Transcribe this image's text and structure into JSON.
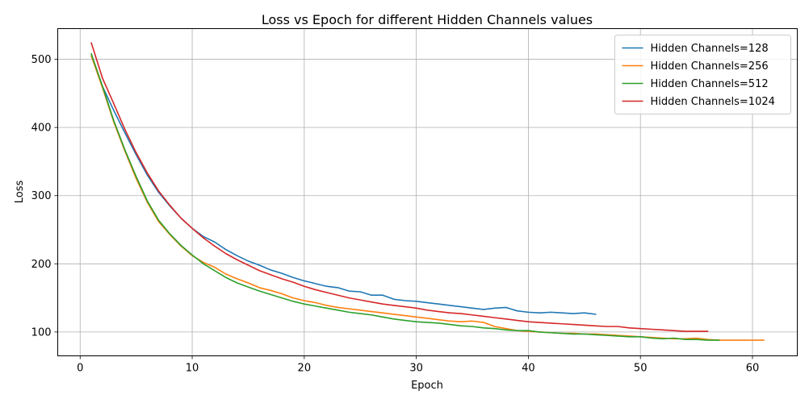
{
  "chart_data": {
    "type": "line",
    "title": "Loss vs Epoch for different Hidden Channels values",
    "xlabel": "Epoch",
    "ylabel": "Loss",
    "xlim": [
      -2.0,
      64.0
    ],
    "ylim": [
      65,
      545
    ],
    "xticks": [
      0,
      10,
      20,
      30,
      40,
      50,
      60
    ],
    "yticks": [
      100,
      200,
      300,
      400,
      500
    ],
    "grid": true,
    "legend_position": "top-right",
    "series": [
      {
        "name": "Hidden Channels=128",
        "color": "#1f77b4",
        "x": [
          1,
          2,
          3,
          4,
          5,
          6,
          7,
          8,
          9,
          10,
          11,
          12,
          13,
          14,
          15,
          16,
          17,
          18,
          19,
          20,
          21,
          22,
          23,
          24,
          25,
          26,
          27,
          28,
          29,
          30,
          31,
          32,
          33,
          34,
          35,
          36,
          37,
          38,
          39,
          40,
          41,
          42,
          43,
          44,
          45,
          46
        ],
        "y": [
          505,
          460,
          425,
          392,
          360,
          330,
          305,
          285,
          267,
          252,
          240,
          232,
          221,
          212,
          204,
          198,
          191,
          186,
          180,
          175,
          171,
          167,
          165,
          160,
          159,
          154,
          154,
          148,
          146,
          145,
          143,
          141,
          139,
          137,
          135,
          133,
          135,
          136,
          131,
          129,
          128,
          129,
          128,
          127,
          128,
          126
        ]
      },
      {
        "name": "Hidden Channels=256",
        "color": "#ff7f0e",
        "x": [
          1,
          2,
          3,
          4,
          5,
          6,
          7,
          8,
          9,
          10,
          11,
          12,
          13,
          14,
          15,
          16,
          17,
          18,
          19,
          20,
          21,
          22,
          23,
          24,
          25,
          26,
          27,
          28,
          29,
          30,
          31,
          32,
          33,
          34,
          35,
          36,
          37,
          38,
          39,
          40,
          41,
          42,
          43,
          44,
          45,
          46,
          47,
          48,
          49,
          50,
          51,
          52,
          53,
          54,
          55,
          56,
          57,
          58,
          59,
          60,
          61
        ],
        "y": [
          505,
          458,
          408,
          365,
          325,
          290,
          262,
          243,
          226,
          212,
          202,
          195,
          185,
          178,
          172,
          165,
          161,
          156,
          150,
          146,
          143,
          139,
          136,
          134,
          132,
          130,
          128,
          126,
          124,
          122,
          120,
          118,
          116,
          115,
          116,
          114,
          108,
          105,
          102,
          101,
          100,
          99,
          98,
          98,
          97,
          97,
          96,
          95,
          94,
          93,
          92,
          91,
          90,
          90,
          91,
          89,
          88,
          88,
          88,
          88,
          88
        ]
      },
      {
        "name": "Hidden Channels=512",
        "color": "#2ca02c",
        "x": [
          1,
          2,
          3,
          4,
          5,
          6,
          7,
          8,
          9,
          10,
          11,
          12,
          13,
          14,
          15,
          16,
          17,
          18,
          19,
          20,
          21,
          22,
          23,
          24,
          25,
          26,
          27,
          28,
          29,
          30,
          31,
          32,
          33,
          34,
          35,
          36,
          37,
          38,
          39,
          40,
          41,
          42,
          43,
          44,
          45,
          46,
          47,
          48,
          49,
          50,
          51,
          52,
          53,
          54,
          55,
          56,
          57
        ],
        "y": [
          508,
          460,
          410,
          367,
          328,
          292,
          264,
          244,
          227,
          213,
          200,
          190,
          180,
          172,
          166,
          160,
          155,
          150,
          145,
          141,
          138,
          135,
          132,
          129,
          127,
          125,
          122,
          119,
          117,
          115,
          114,
          113,
          111,
          109,
          108,
          106,
          105,
          103,
          102,
          102,
          100,
          99,
          98,
          97,
          97,
          96,
          95,
          94,
          93,
          93,
          91,
          90,
          91,
          89,
          89,
          88,
          88
        ]
      },
      {
        "name": "Hidden Channels=1024",
        "color": "#d62728",
        "x": [
          1,
          2,
          3,
          4,
          5,
          6,
          7,
          8,
          9,
          10,
          11,
          12,
          13,
          14,
          15,
          16,
          17,
          18,
          19,
          20,
          21,
          22,
          23,
          24,
          25,
          26,
          27,
          28,
          29,
          30,
          31,
          32,
          33,
          34,
          35,
          36,
          37,
          38,
          39,
          40,
          41,
          42,
          43,
          44,
          45,
          46,
          47,
          48,
          49,
          50,
          51,
          52,
          53,
          54,
          55,
          56
        ],
        "y": [
          524,
          472,
          435,
          397,
          363,
          333,
          307,
          286,
          267,
          252,
          238,
          226,
          215,
          206,
          198,
          190,
          184,
          178,
          173,
          167,
          162,
          158,
          154,
          150,
          147,
          144,
          141,
          139,
          137,
          135,
          132,
          130,
          128,
          127,
          125,
          123,
          121,
          119,
          117,
          115,
          114,
          113,
          112,
          111,
          110,
          109,
          108,
          108,
          106,
          105,
          104,
          103,
          102,
          101,
          101,
          101
        ]
      }
    ]
  }
}
